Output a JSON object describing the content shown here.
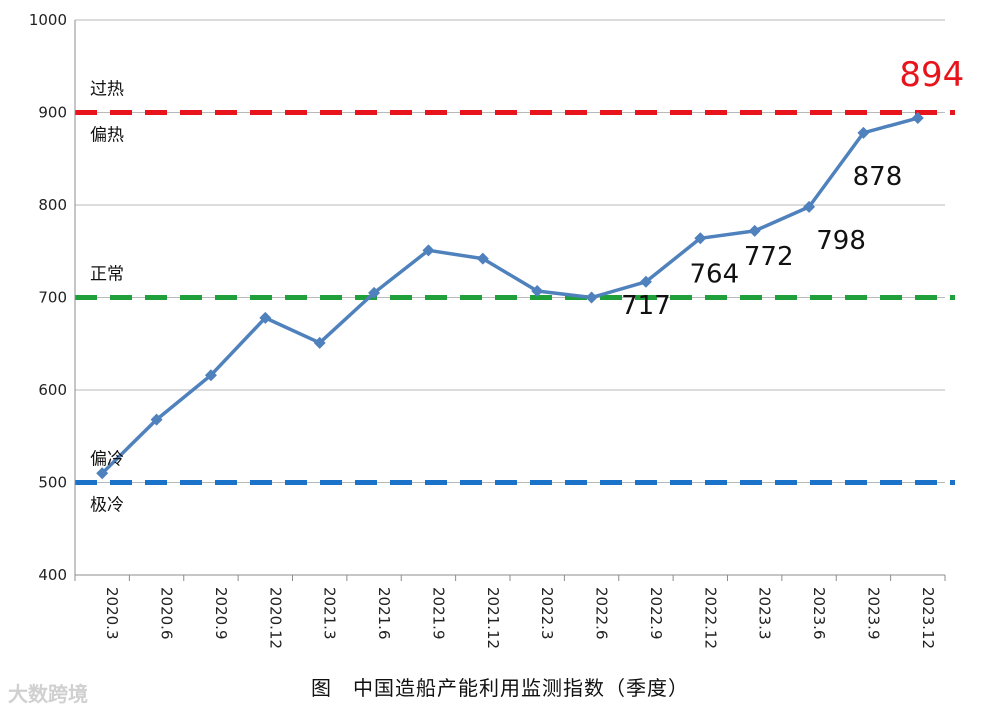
{
  "chart_data": {
    "type": "line",
    "title": "",
    "xlabel": "",
    "ylabel": "",
    "ylim": [
      400,
      1000
    ],
    "yticks": [
      400,
      500,
      600,
      700,
      800,
      900,
      1000
    ],
    "grid": "horizontal",
    "categories": [
      "2020.3",
      "2020.6",
      "2020.9",
      "2020.12",
      "2021.3",
      "2021.6",
      "2021.9",
      "2021.12",
      "2022.3",
      "2022.6",
      "2022.9",
      "2022.12",
      "2023.3",
      "2023.6",
      "2023.9",
      "2023.12"
    ],
    "series": [
      {
        "values": [
          510,
          568,
          616,
          678,
          651,
          705,
          751,
          742,
          707,
          700,
          717,
          764,
          772,
          798,
          878,
          894
        ],
        "color": "#4f81bd"
      }
    ],
    "data_labels": [
      {
        "category": "2022.9",
        "text": "717"
      },
      {
        "category": "2022.12",
        "text": "764"
      },
      {
        "category": "2023.3",
        "text": "772"
      },
      {
        "category": "2023.6",
        "text": "798"
      },
      {
        "category": "2023.9",
        "text": "878"
      },
      {
        "category": "2023.12",
        "text": "894",
        "color": "#e8141b"
      }
    ],
    "reference_lines": [
      {
        "value": 900,
        "color": "#e8141b",
        "label_above": "过热",
        "label_below": "偏热"
      },
      {
        "value": 700,
        "color": "#1fa03a",
        "label_above": "正常"
      },
      {
        "value": 500,
        "color": "#1a73c8",
        "label_above": "偏冷",
        "label_below": "极冷"
      }
    ]
  },
  "caption": "图　中国造船产能利用监测指数（季度）",
  "watermark": "大数跨境"
}
